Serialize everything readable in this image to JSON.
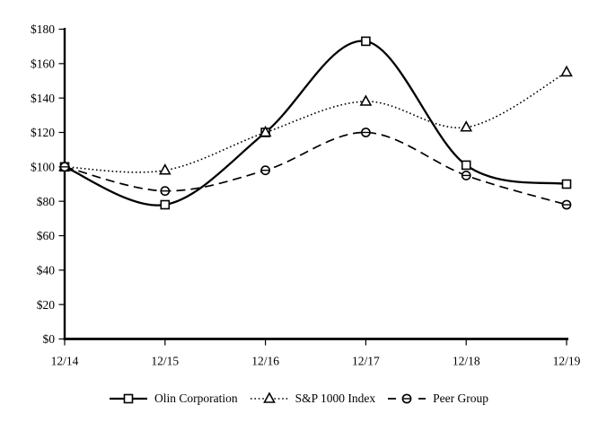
{
  "figure": {
    "background_color": "#ffffff",
    "ink_color": "#000000",
    "title": ""
  },
  "chart_data": {
    "type": "line",
    "title": "",
    "xlabel": "",
    "ylabel": "",
    "categories": [
      "12/14",
      "12/15",
      "12/16",
      "12/17",
      "12/18",
      "12/19"
    ],
    "y_tick_values": [
      0,
      20,
      40,
      60,
      80,
      100,
      120,
      140,
      160,
      180
    ],
    "y_tick_labels": [
      "$0",
      "$20",
      "$40",
      "$60",
      "$80",
      "$100",
      "$120",
      "$140",
      "$160",
      "$180"
    ],
    "ylim": [
      0,
      180
    ],
    "grid": false,
    "legend_position": "bottom",
    "series": [
      {
        "name": "Olin Corporation",
        "marker": "square",
        "line_style": "solid",
        "color": "#000000",
        "values": [
          100,
          78,
          120,
          173,
          101,
          90
        ]
      },
      {
        "name": "S&P 1000 Index",
        "marker": "triangle",
        "line_style": "dotted",
        "color": "#000000",
        "values": [
          100,
          98,
          120,
          138,
          123,
          155
        ]
      },
      {
        "name": "Peer Group",
        "marker": "circle-dash",
        "line_style": "dashed",
        "color": "#000000",
        "values": [
          100,
          86,
          98,
          120,
          95,
          78
        ]
      }
    ]
  }
}
